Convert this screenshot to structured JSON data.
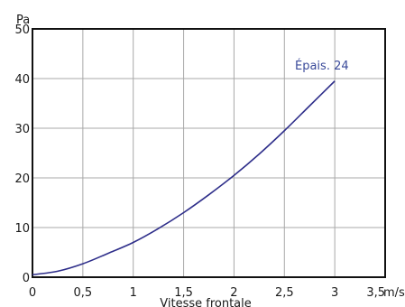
{
  "chart_data": {
    "type": "line",
    "title": "",
    "xlabel": "Vitesse frontale",
    "ylabel": "",
    "x_unit_label": "m/s",
    "y_unit_label": "Pa",
    "xlim": [
      0,
      3.5
    ],
    "ylim": [
      0,
      50
    ],
    "x_ticks": [
      0,
      0.5,
      1,
      1.5,
      2,
      2.5,
      3,
      3.5
    ],
    "x_tick_labels": [
      "0",
      "0,5",
      "1",
      "1,5",
      "2",
      "2,5",
      "3",
      "3,5"
    ],
    "y_ticks": [
      0,
      10,
      20,
      30,
      40,
      50
    ],
    "y_tick_labels": [
      "0",
      "10",
      "20",
      "30",
      "40",
      "50"
    ],
    "grid": true,
    "line_color": "#2e2e8a",
    "series": [
      {
        "name": "Épais. 24",
        "x": [
          0,
          0.25,
          0.5,
          0.75,
          1,
          1.25,
          1.5,
          1.75,
          2,
          2.25,
          2.5,
          2.75,
          3
        ],
        "y": [
          0.5,
          1.2,
          2.7,
          4.8,
          7.0,
          9.8,
          13.0,
          16.6,
          20.5,
          24.8,
          29.5,
          34.5,
          39.5
        ]
      }
    ]
  }
}
